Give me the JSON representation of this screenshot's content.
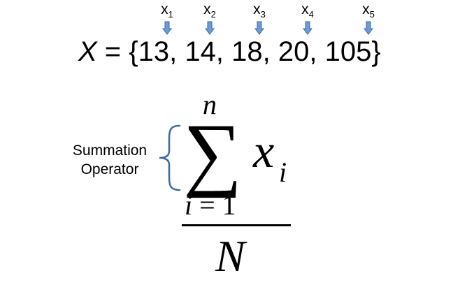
{
  "subscript_labels": [
    {
      "base": "x",
      "sub": "1"
    },
    {
      "base": "x",
      "sub": "2"
    },
    {
      "base": "x",
      "sub": "3"
    },
    {
      "base": "x",
      "sub": "4"
    },
    {
      "base": "x",
      "sub": "5"
    }
  ],
  "arrow_color": "#6a9bd8",
  "arrow_stroke": "#3b6aa8",
  "brace_color": "#3b6aa8",
  "set_expression": {
    "variable": "X",
    "equals": " = {",
    "values": [
      "13",
      "14",
      "18",
      "20",
      "105"
    ],
    "separator": ", ",
    "close": "}"
  },
  "operator_label": {
    "line1": "Summation",
    "line2": "Operator"
  },
  "formula": {
    "upper_limit": "n",
    "sigma": "∑",
    "term": "x",
    "term_sub": "i",
    "lower_limit_var": "i",
    "lower_limit_rest": " = 1",
    "denominator": "N"
  }
}
